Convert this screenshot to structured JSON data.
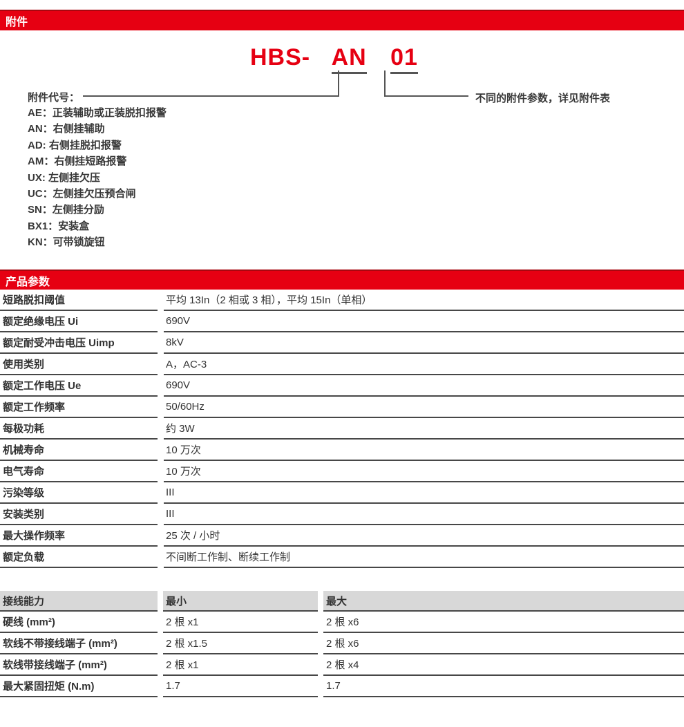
{
  "colors": {
    "accent_red": "#e60012",
    "line_gray": "#474747",
    "header_gray": "#d8d8d8"
  },
  "sections": {
    "accessories_title": "附件",
    "product_params_title": "产品参数"
  },
  "model_code": {
    "prefix": "HBS-",
    "part_accessory": "AN",
    "part_variant": "01",
    "left_caption": "附件代号：",
    "right_caption": "不同的附件参数，详见附件表"
  },
  "accessory_codes": [
    "AE：正装辅助或正装脱扣报警",
    "AN：右侧挂辅助",
    "AD: 右侧挂脱扣报警",
    "AM：右侧挂短路报警",
    "UX: 左侧挂欠压",
    "UC：左侧挂欠压预合闸",
    "SN：左侧挂分励",
    "BX1：安装盒",
    "KN：可带锁旋钮"
  ],
  "product_params": {
    "rows": [
      {
        "label": "短路脱扣阈值",
        "value": "平均 13In（2 相或 3 相），平均 15In（单相）"
      },
      {
        "label": "额定绝缘电压 Ui",
        "value": "690V"
      },
      {
        "label": "额定耐受冲击电压 Uimp",
        "value": "8kV"
      },
      {
        "label": "使用类别",
        "value": "A，AC-3"
      },
      {
        "label": "额定工作电压 Ue",
        "value": "690V"
      },
      {
        "label": "额定工作频率",
        "value": "50/60Hz"
      },
      {
        "label": "每极功耗",
        "value": "约 3W"
      },
      {
        "label": "机械寿命",
        "value": "10 万次"
      },
      {
        "label": "电气寿命",
        "value": "10 万次"
      },
      {
        "label": "污染等级",
        "value": "III"
      },
      {
        "label": "安装类别",
        "value": "III"
      },
      {
        "label": "最大操作频率",
        "value": "25 次 / 小时"
      },
      {
        "label": "额定负载",
        "value": "不间断工作制、断续工作制"
      }
    ]
  },
  "wiring_table": {
    "headers": [
      "接线能力",
      "最小",
      "最大"
    ],
    "rows": [
      {
        "label": "硬线 (mm²)",
        "min": "2 根 x1",
        "max": "2 根 x6"
      },
      {
        "label": "软线不带接线端子 (mm²)",
        "min": "2 根 x1.5",
        "max": "2 根 x6"
      },
      {
        "label": "软线带接线端子 (mm²)",
        "min": "2 根 x1",
        "max": "2 根 x4"
      },
      {
        "label": "最大紧固扭矩 (N.m)",
        "min": "1.7",
        "max": "1.7"
      }
    ]
  }
}
